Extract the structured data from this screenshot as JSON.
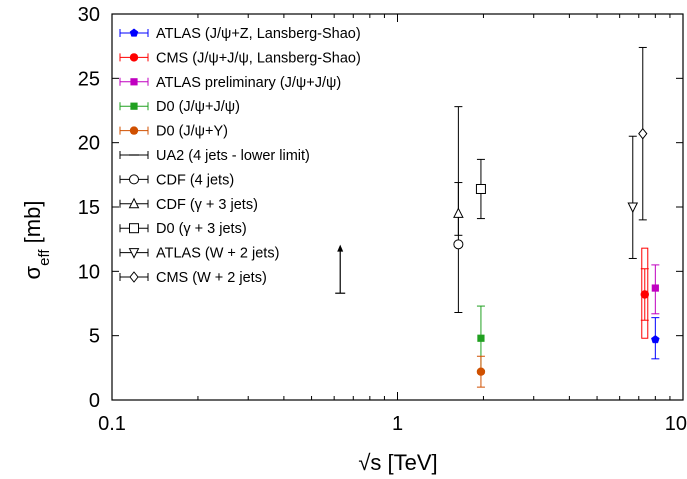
{
  "chart_data": {
    "type": "scatter",
    "title": "",
    "xlabel": "√s [TeV]",
    "ylabel_main": "σ",
    "ylabel_sub": "eff",
    "ylabel_unit": " [mb]",
    "xscale": "log",
    "xlim": [
      0.1,
      10
    ],
    "ylim": [
      0,
      30
    ],
    "xticks": [
      0.1,
      1,
      10
    ],
    "xtick_labels": [
      "0.1",
      "1",
      "10"
    ],
    "yticks": [
      0,
      5,
      10,
      15,
      20,
      25,
      30
    ],
    "ytick_labels": [
      "0",
      "5",
      "10",
      "15",
      "20",
      "25",
      "30"
    ],
    "grid": false,
    "legend_position": "top-left",
    "series": [
      {
        "name": "ATLAS (J/ψ+Z, Lansberg-Shao)",
        "color": "#0000ff",
        "marker": "pentagon-filled",
        "points": [
          {
            "x": 8.0,
            "y": 4.7,
            "ylo": 3.2,
            "yhi": 6.4
          }
        ]
      },
      {
        "name": "CMS (J/ψ+J/ψ, Lansberg-Shao)",
        "color": "#ff0000",
        "marker": "circle-filled",
        "points": [
          {
            "x": 7.0,
            "y": 8.2,
            "ylo": 6.2,
            "yhi": 10.2,
            "sys_lo": 4.8,
            "sys_hi": 11.8
          }
        ]
      },
      {
        "name": "ATLAS preliminary (J/ψ+J/ψ)",
        "color": "#c000c0",
        "marker": "square-filled",
        "points": [
          {
            "x": 8.0,
            "y": 8.7,
            "ylo": 6.7,
            "yhi": 10.5
          }
        ]
      },
      {
        "name": "D0 (J/ψ+J/ψ)",
        "color": "#20a020",
        "marker": "square-filled",
        "points": [
          {
            "x": 1.96,
            "y": 4.8,
            "ylo": 2.3,
            "yhi": 7.3
          }
        ]
      },
      {
        "name": "D0 (J/ψ+Υ)",
        "color": "#d05000",
        "marker": "circle-filled",
        "points": [
          {
            "x": 1.96,
            "y": 2.2,
            "ylo": 1.0,
            "yhi": 3.4
          }
        ]
      },
      {
        "name": "UA2 (4 jets - lower limit)",
        "color": "#000000",
        "marker": "plus",
        "points": [
          {
            "x": 0.63,
            "y": 8.3,
            "arrow_up_to": 12.0
          }
        ]
      },
      {
        "name": "CDF (4 jets)",
        "color": "#000000",
        "marker": "circle-open",
        "points": [
          {
            "x": 1.8,
            "y": 12.1,
            "ylo": 6.8,
            "yhi": 22.8
          }
        ]
      },
      {
        "name": "CDF (γ + 3 jets)",
        "color": "#000000",
        "marker": "triangle-up-open",
        "points": [
          {
            "x": 1.8,
            "y": 14.5,
            "ylo": 12.8,
            "yhi": 16.9
          }
        ]
      },
      {
        "name": "D0 (γ + 3 jets)",
        "color": "#000000",
        "marker": "square-open",
        "points": [
          {
            "x": 1.96,
            "y": 16.4,
            "ylo": 14.1,
            "yhi": 18.7
          }
        ]
      },
      {
        "name": "ATLAS (W + 2 jets)",
        "color": "#000000",
        "marker": "triangle-down-open",
        "points": [
          {
            "x": 7.0,
            "y": 15.0,
            "ylo": 11.0,
            "yhi": 20.5
          }
        ]
      },
      {
        "name": "CMS (W + 2 jets)",
        "color": "#000000",
        "marker": "diamond-open",
        "points": [
          {
            "x": 7.0,
            "y": 20.7,
            "ylo": 14.0,
            "yhi": 27.4
          }
        ]
      }
    ]
  }
}
